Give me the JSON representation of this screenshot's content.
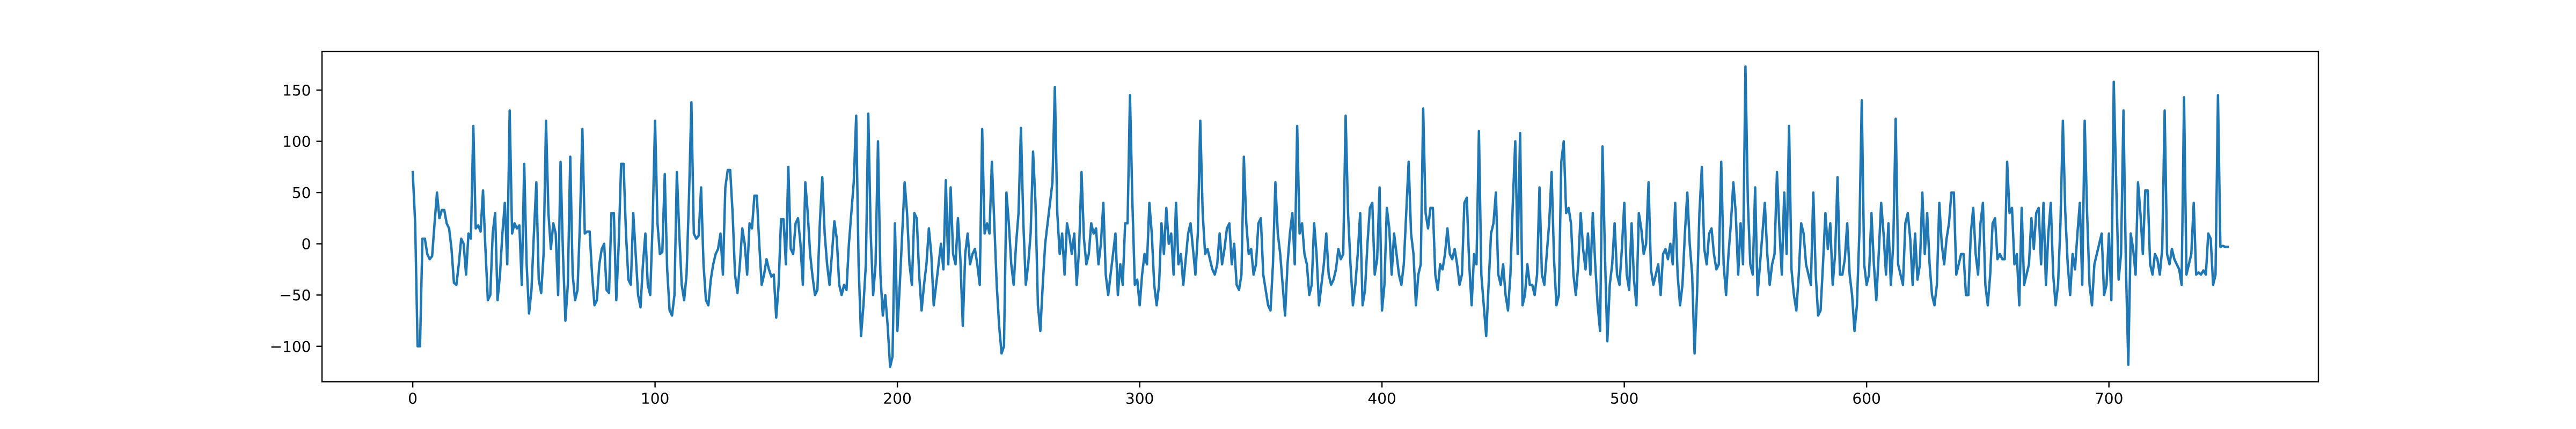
{
  "chart_data": {
    "type": "line",
    "color": "#1f77b4",
    "xlim": [
      -37.45,
      786.45
    ],
    "ylim": [
      -134.65,
      187.65
    ],
    "xticks": [
      0,
      100,
      200,
      300,
      400,
      500,
      600,
      700
    ],
    "yticks": [
      {
        "value": -100,
        "label": "−100"
      },
      {
        "value": -50,
        "label": "−50"
      },
      0,
      50,
      100,
      150
    ],
    "x": [
      0,
      1,
      2,
      3,
      4,
      5,
      6,
      7,
      8,
      9,
      10,
      11,
      12,
      13,
      14,
      15,
      16,
      17,
      18,
      19,
      20,
      21,
      22,
      23,
      24,
      25,
      26,
      27,
      28,
      29,
      30,
      31,
      32,
      33,
      34,
      35,
      36,
      37,
      38,
      39,
      40,
      41,
      42,
      43,
      44,
      45,
      46,
      47,
      48,
      49,
      50,
      51,
      52,
      53,
      54,
      55,
      56,
      57,
      58,
      59,
      60,
      61,
      62,
      63,
      64,
      65,
      66,
      67,
      68,
      69,
      70,
      71,
      72,
      73,
      74,
      75,
      76,
      77,
      78,
      79,
      80,
      81,
      82,
      83,
      84,
      85,
      86,
      87,
      88,
      89,
      90,
      91,
      92,
      93,
      94,
      95,
      96,
      97,
      98,
      99,
      100,
      101,
      102,
      103,
      104,
      105,
      106,
      107,
      108,
      109,
      110,
      111,
      112,
      113,
      114,
      115,
      116,
      117,
      118,
      119,
      120,
      121,
      122,
      123,
      124,
      125,
      126,
      127,
      128,
      129,
      130,
      131,
      132,
      133,
      134,
      135,
      136,
      137,
      138,
      139,
      140,
      141,
      142,
      143,
      144,
      145,
      146,
      147,
      148,
      149,
      150,
      151,
      152,
      153,
      154,
      155,
      156,
      157,
      158,
      159,
      160,
      161,
      162,
      163,
      164,
      165,
      166,
      167,
      168,
      169,
      170,
      171,
      172,
      173,
      174,
      175,
      176,
      177,
      178,
      179,
      180,
      181,
      182,
      183,
      184,
      185,
      186,
      187,
      188,
      189,
      190,
      191,
      192,
      193,
      194,
      195,
      196,
      197,
      198,
      199,
      200,
      201,
      202,
      203,
      204,
      205,
      206,
      207,
      208,
      209,
      210,
      211,
      212,
      213,
      214,
      215,
      216,
      217,
      218,
      219,
      220,
      221,
      222,
      223,
      224,
      225,
      226,
      227,
      228,
      229,
      230,
      231,
      232,
      233,
      234,
      235,
      236,
      237,
      238,
      239,
      240,
      241,
      242,
      243,
      244,
      245,
      246,
      247,
      248,
      249,
      250,
      251,
      252,
      253,
      254,
      255,
      256,
      257,
      258,
      259,
      260,
      261,
      262,
      263,
      264,
      265,
      266,
      267,
      268,
      269,
      270,
      271,
      272,
      273,
      274,
      275,
      276,
      277,
      278,
      279,
      280,
      281,
      282,
      283,
      284,
      285,
      286,
      287,
      288,
      289,
      290,
      291,
      292,
      293,
      294,
      295,
      296,
      297,
      298,
      299,
      300,
      301,
      302,
      303,
      304,
      305,
      306,
      307,
      308,
      309,
      310,
      311,
      312,
      313,
      314,
      315,
      316,
      317,
      318,
      319,
      320,
      321,
      322,
      323,
      324,
      325,
      326,
      327,
      328,
      329,
      330,
      331,
      332,
      333,
      334,
      335,
      336,
      337,
      338,
      339,
      340,
      341,
      342,
      343,
      344,
      345,
      346,
      347,
      348,
      349,
      350,
      351,
      352,
      353,
      354,
      355,
      356,
      357,
      358,
      359,
      360,
      361,
      362,
      363,
      364,
      365,
      366,
      367,
      368,
      369,
      370,
      371,
      372,
      373,
      374,
      375,
      376,
      377,
      378,
      379,
      380,
      381,
      382,
      383,
      384,
      385,
      386,
      387,
      388,
      389,
      390,
      391,
      392,
      393,
      394,
      395,
      396,
      397,
      398,
      399,
      400,
      401,
      402,
      403,
      404,
      405,
      406,
      407,
      408,
      409,
      410,
      411,
      412,
      413,
      414,
      415,
      416,
      417,
      418,
      419,
      420,
      421,
      422,
      423,
      424,
      425,
      426,
      427,
      428,
      429,
      430,
      431,
      432,
      433,
      434,
      435,
      436,
      437,
      438,
      439,
      440,
      441,
      442,
      443,
      444,
      445,
      446,
      447,
      448,
      449,
      450,
      451,
      452,
      453,
      454,
      455,
      456,
      457,
      458,
      459,
      460,
      461,
      462,
      463,
      464,
      465,
      466,
      467,
      468,
      469,
      470,
      471,
      472,
      473,
      474,
      475,
      476,
      477,
      478,
      479,
      480,
      481,
      482,
      483,
      484,
      485,
      486,
      487,
      488,
      489,
      490,
      491,
      492,
      493,
      494,
      495,
      496,
      497,
      498,
      499,
      500,
      501,
      502,
      503,
      504,
      505,
      506,
      507,
      508,
      509,
      510,
      511,
      512,
      513,
      514,
      515,
      516,
      517,
      518,
      519,
      520,
      521,
      522,
      523,
      524,
      525,
      526,
      527,
      528,
      529,
      530,
      531,
      532,
      533,
      534,
      535,
      536,
      537,
      538,
      539,
      540,
      541,
      542,
      543,
      544,
      545,
      546,
      547,
      548,
      549,
      550,
      551,
      552,
      553,
      554,
      555,
      556,
      557,
      558,
      559,
      560,
      561,
      562,
      563,
      564,
      565,
      566,
      567,
      568,
      569,
      570,
      571,
      572,
      573,
      574,
      575,
      576,
      577,
      578,
      579,
      580,
      581,
      582,
      583,
      584,
      585,
      586,
      587,
      588,
      589,
      590,
      591,
      592,
      593,
      594,
      595,
      596,
      597,
      598,
      599,
      600,
      601,
      602,
      603,
      604,
      605,
      606,
      607,
      608,
      609,
      610,
      611,
      612,
      613,
      614,
      615,
      616,
      617,
      618,
      619,
      620,
      621,
      622,
      623,
      624,
      625,
      626,
      627,
      628,
      629,
      630,
      631,
      632,
      633,
      634,
      635,
      636,
      637,
      638,
      639,
      640,
      641,
      642,
      643,
      644,
      645,
      646,
      647,
      648,
      649,
      650,
      651,
      652,
      653,
      654,
      655,
      656,
      657,
      658,
      659,
      660,
      661,
      662,
      663,
      664,
      665,
      666,
      667,
      668,
      669,
      670,
      671,
      672,
      673,
      674,
      675,
      676,
      677,
      678,
      679,
      680,
      681,
      682,
      683,
      684,
      685,
      686,
      687,
      688,
      689,
      690,
      691,
      692,
      693,
      694,
      695,
      696,
      697,
      698,
      699,
      700,
      701,
      702,
      703,
      704,
      705,
      706,
      707,
      708,
      709,
      710,
      711,
      712,
      713,
      714,
      715,
      716,
      717,
      718,
      719,
      720,
      721,
      722,
      723,
      724,
      725,
      726,
      727,
      728,
      729,
      730,
      731,
      732,
      733,
      734,
      735,
      736,
      737,
      738,
      739,
      740,
      741,
      742,
      743,
      744,
      745,
      746,
      747,
      748,
      749
    ],
    "values": [
      70,
      20,
      -100,
      -100,
      5,
      5,
      -10,
      -15,
      -12,
      20,
      50,
      25,
      33,
      33,
      20,
      15,
      -5,
      -38,
      -40,
      -20,
      5,
      0,
      -30,
      10,
      5,
      115,
      15,
      18,
      12,
      52,
      -5,
      -55,
      -50,
      10,
      30,
      -55,
      -30,
      10,
      40,
      -20,
      130,
      10,
      20,
      15,
      18,
      -40,
      78,
      -20,
      -68,
      -45,
      10,
      60,
      -35,
      -48,
      -10,
      120,
      30,
      -5,
      20,
      10,
      -50,
      80,
      -10,
      -75,
      -40,
      85,
      -30,
      -55,
      -45,
      20,
      112,
      10,
      12,
      12,
      -30,
      -60,
      -55,
      -20,
      -5,
      0,
      -45,
      -48,
      30,
      30,
      -55,
      0,
      78,
      78,
      10,
      -35,
      -40,
      30,
      -10,
      -50,
      -62,
      -20,
      10,
      -40,
      -50,
      20,
      120,
      20,
      -10,
      -8,
      68,
      -25,
      -65,
      -70,
      -50,
      70,
      10,
      -40,
      -55,
      -30,
      45,
      138,
      10,
      5,
      8,
      55,
      -20,
      -55,
      -60,
      -35,
      -20,
      -10,
      -5,
      10,
      -30,
      55,
      72,
      72,
      30,
      -30,
      -48,
      -20,
      15,
      0,
      -30,
      20,
      15,
      47,
      47,
      0,
      -40,
      -30,
      -15,
      -25,
      -32,
      -30,
      -72,
      -40,
      24,
      24,
      -20,
      75,
      -5,
      -10,
      20,
      25,
      0,
      -40,
      60,
      30,
      -10,
      -32,
      -50,
      -45,
      20,
      65,
      10,
      -20,
      -40,
      -10,
      22,
      5,
      -40,
      -50,
      -40,
      -45,
      0,
      30,
      60,
      125,
      -20,
      -90,
      -60,
      -20,
      127,
      10,
      -50,
      -20,
      100,
      -30,
      -70,
      -50,
      -80,
      -120,
      -110,
      20,
      -85,
      -40,
      10,
      60,
      30,
      -20,
      -40,
      30,
      25,
      -30,
      -65,
      -40,
      -20,
      15,
      -10,
      -60,
      -40,
      -20,
      0,
      -25,
      62,
      -20,
      55,
      -10,
      -20,
      25,
      -15,
      -80,
      -10,
      10,
      -20,
      -10,
      -5,
      -20,
      -40,
      112,
      10,
      20,
      10,
      80,
      20,
      -40,
      -80,
      -107,
      -100,
      50,
      20,
      -20,
      -40,
      0,
      30,
      113,
      20,
      -40,
      -20,
      10,
      90,
      40,
      -60,
      -85,
      -40,
      0,
      20,
      40,
      60,
      153,
      30,
      -10,
      10,
      -30,
      20,
      8,
      -10,
      10,
      -40,
      -5,
      70,
      5,
      -20,
      -10,
      20,
      10,
      15,
      -20,
      0,
      40,
      -30,
      -50,
      -30,
      -10,
      10,
      -50,
      -20,
      -40,
      20,
      20,
      145,
      40,
      -40,
      -35,
      -60,
      -30,
      -10,
      -20,
      40,
      10,
      -40,
      -60,
      -40,
      20,
      -10,
      35,
      0,
      10,
      -30,
      40,
      -20,
      -10,
      -40,
      -15,
      10,
      20,
      -5,
      -30,
      10,
      120,
      30,
      -10,
      -5,
      -15,
      -25,
      -30,
      -20,
      10,
      -20,
      -5,
      15,
      20,
      -20,
      0,
      -40,
      -45,
      -30,
      85,
      20,
      -10,
      -5,
      -30,
      -20,
      20,
      25,
      -30,
      -45,
      -60,
      -65,
      -20,
      60,
      10,
      -10,
      -40,
      -70,
      -20,
      10,
      30,
      -20,
      115,
      10,
      20,
      -10,
      -20,
      -50,
      -40,
      20,
      -10,
      -60,
      -40,
      -20,
      10,
      -30,
      -40,
      -35,
      -25,
      -5,
      -15,
      -10,
      125,
      30,
      -20,
      -60,
      -40,
      -10,
      30,
      -60,
      -45,
      0,
      35,
      40,
      -30,
      -15,
      55,
      -65,
      -40,
      35,
      15,
      -30,
      10,
      -10,
      -30,
      -40,
      -20,
      30,
      80,
      10,
      -10,
      -60,
      -30,
      -20,
      132,
      30,
      15,
      35,
      35,
      -30,
      -45,
      -20,
      -25,
      -10,
      15,
      -10,
      -15,
      -5,
      -20,
      -40,
      -30,
      40,
      45,
      -20,
      -60,
      -10,
      -20,
      110,
      -30,
      -60,
      -90,
      -40,
      10,
      20,
      50,
      -30,
      -40,
      -20,
      -50,
      -65,
      -30,
      40,
      100,
      -10,
      108,
      -60,
      -50,
      -20,
      -40,
      -40,
      -50,
      -30,
      55,
      -30,
      -40,
      -10,
      20,
      70,
      -15,
      -60,
      -50,
      80,
      100,
      30,
      35,
      20,
      -30,
      -50,
      -20,
      30,
      -5,
      -25,
      10,
      -30,
      30,
      -20,
      -60,
      -85,
      95,
      -10,
      -95,
      -40,
      -20,
      20,
      -30,
      -40,
      -5,
      40,
      -30,
      -45,
      20,
      -35,
      -60,
      30,
      15,
      -10,
      0,
      60,
      -25,
      -40,
      -30,
      -20,
      -50,
      -10,
      -5,
      -15,
      0,
      -20,
      40,
      -30,
      -60,
      -40,
      10,
      50,
      0,
      -30,
      -107,
      -50,
      30,
      75,
      -5,
      -20,
      10,
      15,
      -10,
      -25,
      -20,
      80,
      -20,
      -50,
      -10,
      20,
      60,
      30,
      -30,
      20,
      -20,
      173,
      40,
      -20,
      -30,
      55,
      -50,
      -20,
      10,
      40,
      -10,
      -40,
      -20,
      -10,
      70,
      15,
      -30,
      50,
      -10,
      115,
      -25,
      -50,
      -65,
      -30,
      20,
      10,
      -20,
      -30,
      -40,
      50,
      -30,
      -70,
      -65,
      -20,
      30,
      -5,
      20,
      -40,
      -10,
      65,
      -30,
      -30,
      -15,
      20,
      -30,
      -50,
      -85,
      -60,
      10,
      140,
      -20,
      -40,
      -30,
      30,
      -20,
      -55,
      -10,
      40,
      10,
      -30,
      20,
      -40,
      0,
      122,
      -20,
      -30,
      -40,
      20,
      30,
      5,
      -40,
      10,
      -35,
      -20,
      50,
      -10,
      30,
      -20,
      -50,
      -60,
      -40,
      40,
      0,
      -20,
      5,
      20,
      50,
      50,
      -30,
      -20,
      -10,
      -10,
      -50,
      -50,
      10,
      35,
      -10,
      -30,
      20,
      40,
      -40,
      -60,
      -30,
      20,
      25,
      -15,
      -10,
      -15,
      -15,
      80,
      30,
      35,
      -20,
      -10,
      -60,
      35,
      -40,
      -30,
      -20,
      25,
      -5,
      30,
      35,
      -20,
      40,
      -40,
      10,
      40,
      -30,
      -60,
      -40,
      20,
      120,
      30,
      -20,
      -50,
      -10,
      -25,
      10,
      40,
      -40,
      120,
      30,
      -40,
      -60,
      -20,
      -10,
      0,
      10,
      -50,
      -40,
      10,
      -55,
      158,
      60,
      -35,
      -10,
      130,
      -20,
      -118,
      10,
      -5,
      -30,
      60,
      30,
      -10,
      52,
      52,
      -20,
      -30,
      -10,
      -15,
      -30,
      -5,
      130,
      -10,
      -20,
      -5,
      -15,
      -20,
      -25,
      -40,
      143,
      -30,
      -20,
      -10,
      40,
      -30,
      -28,
      -30,
      -26,
      -30,
      10,
      5,
      -40,
      -30,
      145,
      -3,
      -2,
      -3,
      -3
    ]
  }
}
